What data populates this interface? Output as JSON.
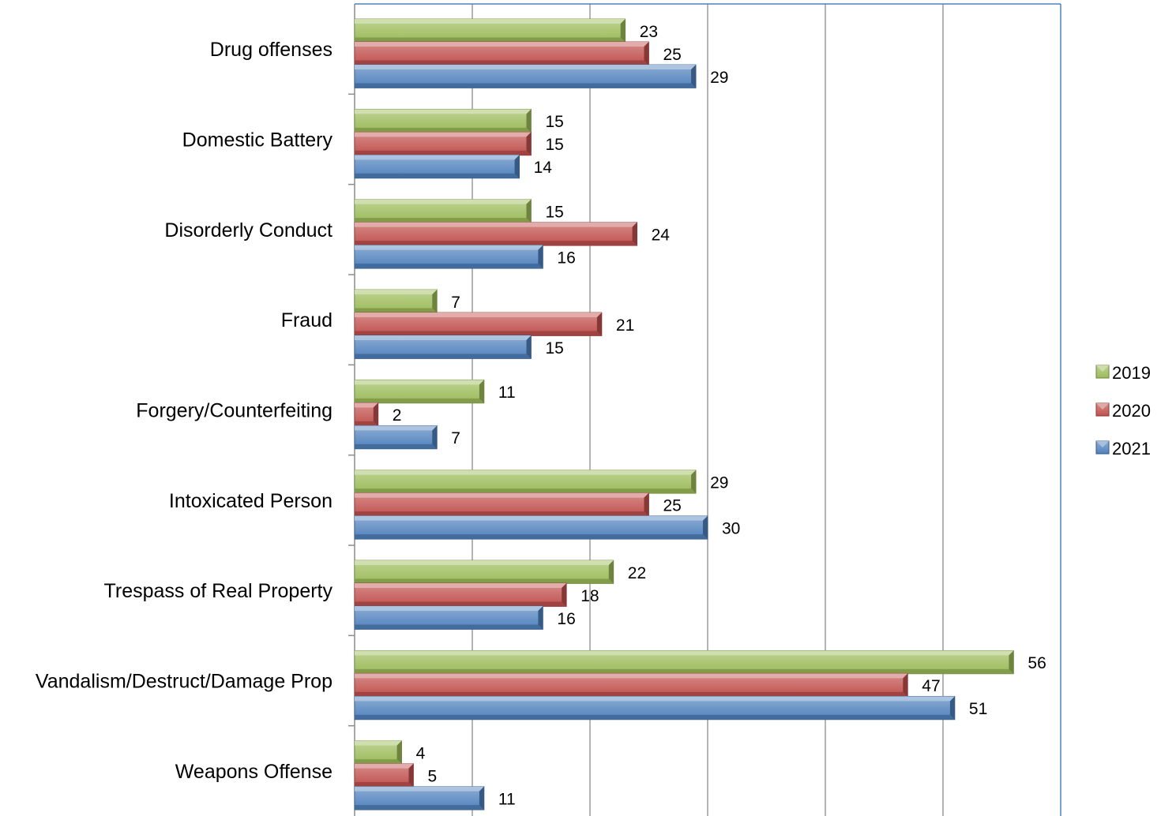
{
  "chart_data": {
    "type": "bar",
    "orientation": "horizontal",
    "categories": [
      "Drug offenses",
      "Domestic Battery",
      "Disorderly Conduct",
      "Fraud",
      "Forgery/Counterfeiting",
      "Intoxicated Person",
      "Trespass of Real Property",
      "Vandalism/Destruct/Damage Prop",
      "Weapons Offense"
    ],
    "series": [
      {
        "name": "2019",
        "color": "#9BBB59",
        "values": [
          23,
          15,
          15,
          7,
          11,
          29,
          22,
          56,
          4
        ]
      },
      {
        "name": "2020",
        "color": "#C0504D",
        "values": [
          25,
          15,
          24,
          21,
          2,
          25,
          18,
          47,
          5
        ]
      },
      {
        "name": "2021",
        "color": "#4F81BD",
        "values": [
          29,
          14,
          16,
          15,
          7,
          30,
          16,
          51,
          11
        ]
      }
    ],
    "xlim": [
      0,
      60
    ],
    "x_gridline_step": 10,
    "grid": true,
    "data_labels": true,
    "legend_position": "right",
    "title": "",
    "xlabel": "",
    "ylabel": ""
  }
}
